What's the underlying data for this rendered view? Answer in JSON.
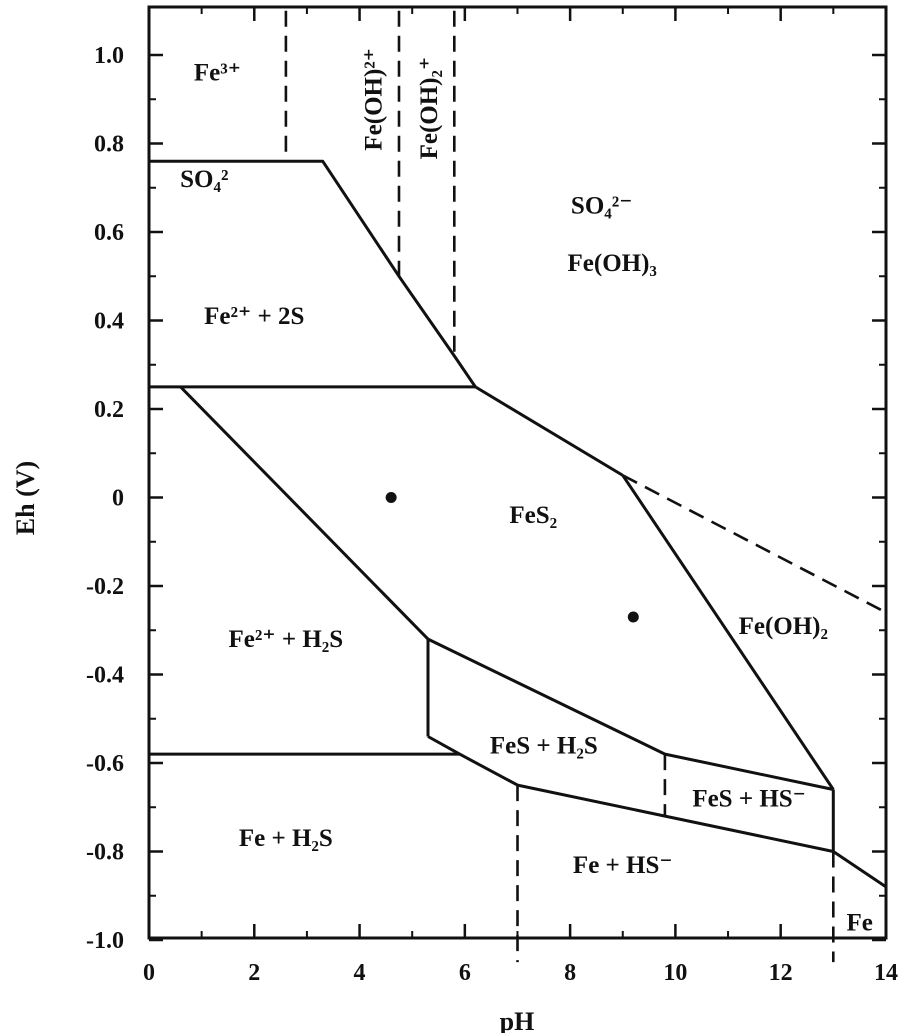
{
  "chart_data": {
    "type": "phase-diagram",
    "title": "",
    "xlabel": "pH",
    "ylabel": "Eh (V)",
    "xlim": [
      0,
      14
    ],
    "ylim": [
      -1.05,
      1.1
    ],
    "x_ticks": [
      0,
      2,
      4,
      6,
      8,
      10,
      12,
      14
    ],
    "x_tick_labels": [
      "0",
      "2",
      "4",
      "6",
      "8",
      "10",
      "12",
      "14"
    ],
    "y_ticks": [
      1.0,
      0.8,
      0.6,
      0.4,
      0.2,
      0,
      -0.2,
      -0.4,
      -0.6,
      -0.8,
      -1.0
    ],
    "y_tick_labels": [
      "1.0",
      "0.8",
      "0.6",
      "0.4",
      "0.2",
      "0",
      "-0.2",
      "-0.4",
      "-0.6",
      "-0.8",
      "-1.0"
    ],
    "grid": false,
    "boundaries": [
      {
        "style": "solid",
        "points": [
          [
            0,
            0.76
          ],
          [
            3.3,
            0.76
          ],
          [
            4.75,
            0.5
          ],
          [
            5.8,
            0.32
          ],
          [
            6.2,
            0.25
          ]
        ]
      },
      {
        "style": "solid",
        "points": [
          [
            0,
            0.25
          ],
          [
            6.2,
            0.25
          ]
        ]
      },
      {
        "style": "solid",
        "points": [
          [
            6.2,
            0.25
          ],
          [
            9.0,
            0.05
          ]
        ]
      },
      {
        "style": "dashed",
        "points": [
          [
            9.0,
            0.05
          ],
          [
            14,
            -0.26
          ]
        ]
      },
      {
        "style": "solid",
        "points": [
          [
            9.0,
            0.05
          ],
          [
            13.0,
            -0.66
          ]
        ]
      },
      {
        "style": "solid",
        "points": [
          [
            0.6,
            0.25
          ],
          [
            5.3,
            -0.32
          ]
        ]
      },
      {
        "style": "solid",
        "points": [
          [
            5.3,
            -0.32
          ],
          [
            9.8,
            -0.58
          ],
          [
            13.0,
            -0.66
          ]
        ]
      },
      {
        "style": "solid",
        "points": [
          [
            5.3,
            -0.32
          ],
          [
            5.3,
            -0.54
          ]
        ]
      },
      {
        "style": "solid",
        "points": [
          [
            5.3,
            -0.54
          ],
          [
            5.9,
            -0.58
          ],
          [
            7.0,
            -0.65
          ],
          [
            13.0,
            -0.8
          ],
          [
            14,
            -0.88
          ]
        ]
      },
      {
        "style": "solid",
        "points": [
          [
            0,
            -0.58
          ],
          [
            5.9,
            -0.58
          ]
        ]
      },
      {
        "style": "solid",
        "points": [
          [
            13.0,
            -0.66
          ],
          [
            13.0,
            -0.8
          ]
        ]
      },
      {
        "style": "dashed",
        "points": [
          [
            2.6,
            1.1
          ],
          [
            2.6,
            0.76
          ]
        ]
      },
      {
        "style": "dashed",
        "points": [
          [
            4.75,
            1.1
          ],
          [
            4.75,
            0.5
          ]
        ]
      },
      {
        "style": "dashed",
        "points": [
          [
            5.8,
            1.1
          ],
          [
            5.8,
            0.32
          ]
        ]
      },
      {
        "style": "dashed",
        "points": [
          [
            9.8,
            -0.58
          ],
          [
            9.8,
            -0.72
          ]
        ]
      },
      {
        "style": "dashed",
        "points": [
          [
            7.0,
            -0.65
          ],
          [
            7.0,
            -1.05
          ]
        ]
      },
      {
        "style": "dashed",
        "points": [
          [
            13.0,
            -0.8
          ],
          [
            13.0,
            -1.05
          ]
        ]
      }
    ],
    "points": [
      {
        "x": 4.6,
        "y": 0.0
      },
      {
        "x": 9.2,
        "y": -0.27
      }
    ],
    "regions": [
      {
        "label": "Fe³⁺",
        "x": 1.3,
        "y": 0.96
      },
      {
        "label": "SO₄²",
        "x": 1.05,
        "y": 0.72
      },
      {
        "label": "Fe²⁺ + 2S",
        "x": 2.0,
        "y": 0.41
      },
      {
        "label": "SO₄²⁻",
        "x": 8.6,
        "y": 0.66
      },
      {
        "label": "Fe(OH)₃",
        "x": 8.8,
        "y": 0.53
      },
      {
        "label": "FeS₂",
        "x": 7.3,
        "y": -0.04
      },
      {
        "label": "Fe(OH)₂",
        "x": 12.05,
        "y": -0.29
      },
      {
        "label": "Fe²⁺ + H₂S",
        "x": 2.6,
        "y": -0.32
      },
      {
        "label": "FeS + H₂S",
        "x": 7.5,
        "y": -0.56
      },
      {
        "label": "FeS + HS⁻",
        "x": 11.4,
        "y": -0.68
      },
      {
        "label": "Fe + H₂S",
        "x": 2.6,
        "y": -0.77
      },
      {
        "label": "Fe + HS⁻",
        "x": 9.0,
        "y": -0.83
      },
      {
        "label": "Fe",
        "x": 13.5,
        "y": -0.96
      }
    ],
    "vertical_labels": [
      {
        "label": "Fe(OH)²⁺",
        "x": 4.25,
        "y": 0.9
      },
      {
        "label": "Fe(OH)₂⁺",
        "x": 5.3,
        "y": 0.88
      }
    ]
  }
}
